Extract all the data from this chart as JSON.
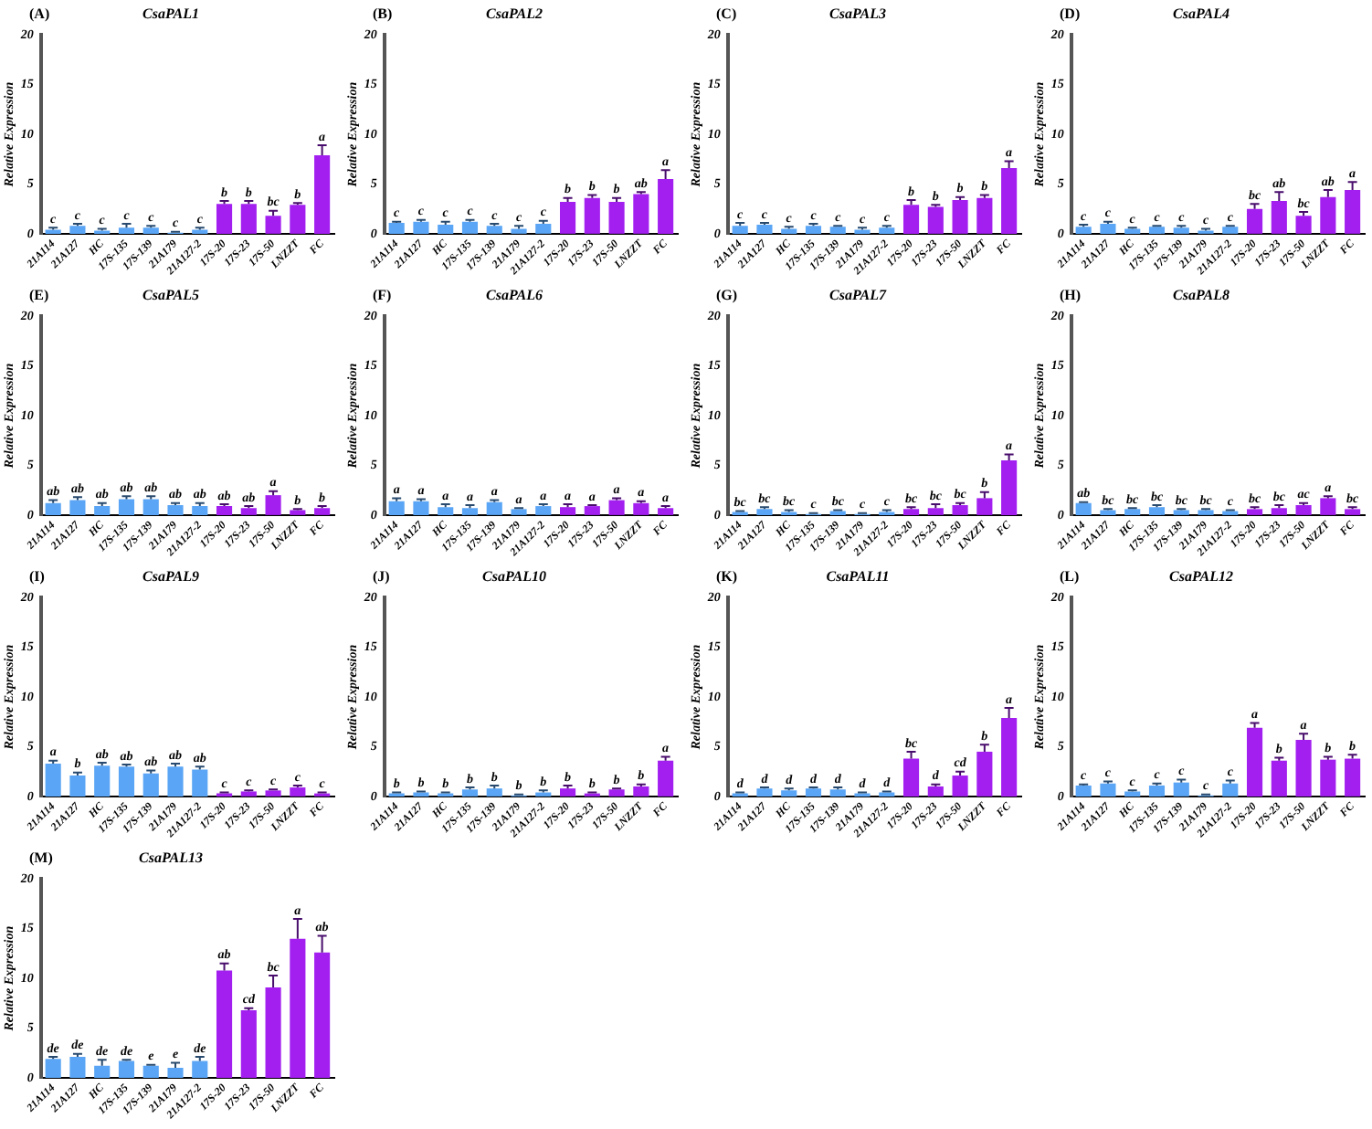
{
  "chart_data": [
    {
      "type": "bar",
      "title": "CsaPAL1",
      "annotations": [
        "(A)"
      ],
      "ylabel": "Relative Expression",
      "categories": [
        "21A114",
        "21A127",
        "HC",
        "17S-135",
        "17S-139",
        "21A179",
        "21A127-2",
        "17S-20",
        "17S-23",
        "17S-50",
        "LNZZT",
        "FC"
      ],
      "colors": [
        "#5aa5f5",
        "#5aa5f5",
        "#5aa5f5",
        "#5aa5f5",
        "#5aa5f5",
        "#5aa5f5",
        "#5aa5f5",
        "#a21ff0",
        "#a21ff0",
        "#a21ff0",
        "#a21ff0",
        "#a21ff0"
      ],
      "values": [
        0.4,
        0.8,
        0.3,
        0.6,
        0.6,
        0.1,
        0.4,
        3.0,
        3.0,
        1.8,
        2.9,
        7.9
      ],
      "errors": [
        [
          0.4,
          0.6
        ],
        [
          0.8,
          1.0
        ],
        [
          0.3,
          0.5
        ],
        [
          0.6,
          1.0
        ],
        [
          0.6,
          0.8
        ],
        [
          0.1,
          0.2
        ],
        [
          0.4,
          0.6
        ],
        [
          3.0,
          3.3
        ],
        [
          3.0,
          3.3
        ],
        [
          1.8,
          2.3
        ],
        [
          2.9,
          3.1
        ],
        [
          7.9,
          8.9
        ]
      ],
      "value_labels": [
        "c",
        "c",
        "c",
        "c",
        "c",
        "c",
        "c",
        "b",
        "b",
        "bc",
        "b",
        "a"
      ],
      "ylim": [
        0,
        20
      ],
      "yticks": [
        0,
        5,
        10,
        15,
        20
      ]
    },
    {
      "type": "bar",
      "title": "CsaPAL2",
      "annotations": [
        "(B)"
      ],
      "ylabel": "Relative Expression",
      "categories": [
        "21A114",
        "21A127",
        "HC",
        "17S-135",
        "17S-139",
        "21A179",
        "21A127-2",
        "17S-20",
        "17S-23",
        "17S-50",
        "LNZZT",
        "FC"
      ],
      "colors": [
        "#5aa5f5",
        "#5aa5f5",
        "#5aa5f5",
        "#5aa5f5",
        "#5aa5f5",
        "#5aa5f5",
        "#5aa5f5",
        "#a21ff0",
        "#a21ff0",
        "#a21ff0",
        "#a21ff0",
        "#a21ff0"
      ],
      "values": [
        1.1,
        1.2,
        0.9,
        1.2,
        0.8,
        0.5,
        1.0,
        3.2,
        3.6,
        3.2,
        4.0,
        5.5
      ],
      "errors": [
        [
          1.1,
          1.2
        ],
        [
          1.2,
          1.4
        ],
        [
          0.9,
          1.2
        ],
        [
          1.2,
          1.4
        ],
        [
          0.8,
          1.0
        ],
        [
          0.5,
          0.8
        ],
        [
          1.0,
          1.3
        ],
        [
          3.2,
          3.6
        ],
        [
          3.6,
          3.9
        ],
        [
          3.2,
          3.6
        ],
        [
          4.0,
          4.2
        ],
        [
          5.5,
          6.4
        ]
      ],
      "value_labels": [
        "c",
        "c",
        "c",
        "c",
        "c",
        "c",
        "c",
        "b",
        "b",
        "b",
        "ab",
        "a"
      ],
      "ylim": [
        0,
        20
      ],
      "yticks": [
        0,
        5,
        10,
        15,
        20
      ]
    },
    {
      "type": "bar",
      "title": "CsaPAL3",
      "annotations": [
        "(C)"
      ],
      "ylabel": "Relative Expression",
      "categories": [
        "21A114",
        "21A127",
        "HC",
        "17S-135",
        "17S-139",
        "21A179",
        "21A127-2",
        "17S-20",
        "17S-23",
        "17S-50",
        "LNZZT",
        "FC"
      ],
      "colors": [
        "#5aa5f5",
        "#5aa5f5",
        "#5aa5f5",
        "#5aa5f5",
        "#5aa5f5",
        "#5aa5f5",
        "#5aa5f5",
        "#a21ff0",
        "#a21ff0",
        "#a21ff0",
        "#a21ff0",
        "#a21ff0"
      ],
      "values": [
        0.8,
        0.9,
        0.5,
        0.8,
        0.7,
        0.4,
        0.6,
        2.9,
        2.7,
        3.4,
        3.6,
        6.6
      ],
      "errors": [
        [
          0.8,
          1.1
        ],
        [
          0.9,
          1.1
        ],
        [
          0.5,
          0.7
        ],
        [
          0.8,
          1.0
        ],
        [
          0.7,
          0.8
        ],
        [
          0.4,
          0.6
        ],
        [
          0.6,
          0.8
        ],
        [
          2.9,
          3.4
        ],
        [
          2.7,
          2.9
        ],
        [
          3.4,
          3.7
        ],
        [
          3.6,
          3.9
        ],
        [
          6.6,
          7.3
        ]
      ],
      "value_labels": [
        "c",
        "c",
        "c",
        "c",
        "c",
        "c",
        "c",
        "b",
        "b",
        "b",
        "b",
        "a"
      ],
      "ylim": [
        0,
        20
      ],
      "yticks": [
        0,
        5,
        10,
        15,
        20
      ]
    },
    {
      "type": "bar",
      "title": "CsaPAL4",
      "annotations": [
        "(D)"
      ],
      "ylabel": "Relative Expression",
      "categories": [
        "21A114",
        "21A127",
        "HC",
        "17S-135",
        "17S-139",
        "21A179",
        "21A127-2",
        "17S-20",
        "17S-23",
        "17S-50",
        "LNZZT",
        "FC"
      ],
      "colors": [
        "#5aa5f5",
        "#5aa5f5",
        "#5aa5f5",
        "#5aa5f5",
        "#5aa5f5",
        "#5aa5f5",
        "#5aa5f5",
        "#a21ff0",
        "#a21ff0",
        "#a21ff0",
        "#a21ff0",
        "#a21ff0"
      ],
      "values": [
        0.7,
        1.0,
        0.5,
        0.7,
        0.6,
        0.3,
        0.7,
        2.5,
        3.3,
        1.8,
        3.7,
        4.4
      ],
      "errors": [
        [
          0.7,
          0.9
        ],
        [
          1.0,
          1.2
        ],
        [
          0.5,
          0.6
        ],
        [
          0.7,
          0.8
        ],
        [
          0.6,
          0.8
        ],
        [
          0.3,
          0.5
        ],
        [
          0.7,
          0.8
        ],
        [
          2.5,
          3.0
        ],
        [
          3.3,
          4.2
        ],
        [
          1.8,
          2.2
        ],
        [
          3.7,
          4.4
        ],
        [
          4.4,
          5.2
        ]
      ],
      "value_labels": [
        "c",
        "c",
        "c",
        "c",
        "c",
        "c",
        "c",
        "bc",
        "ab",
        "bc",
        "ab",
        "a"
      ],
      "ylim": [
        0,
        20
      ],
      "yticks": [
        0,
        5,
        10,
        15,
        20
      ]
    },
    {
      "type": "bar",
      "title": "CsaPAL5",
      "annotations": [
        "(E)"
      ],
      "ylabel": "Relative Expression",
      "categories": [
        "21A114",
        "21A127",
        "HC",
        "17S-135",
        "17S-139",
        "21A179",
        "21A127-2",
        "17S-20",
        "17S-23",
        "17S-50",
        "LNZZT",
        "FC"
      ],
      "colors": [
        "#5aa5f5",
        "#5aa5f5",
        "#5aa5f5",
        "#5aa5f5",
        "#5aa5f5",
        "#5aa5f5",
        "#5aa5f5",
        "#a21ff0",
        "#a21ff0",
        "#a21ff0",
        "#a21ff0",
        "#a21ff0"
      ],
      "values": [
        1.2,
        1.5,
        0.9,
        1.6,
        1.6,
        1.0,
        0.9,
        0.9,
        0.7,
        2.0,
        0.5,
        0.7
      ],
      "errors": [
        [
          1.2,
          1.5
        ],
        [
          1.5,
          1.8
        ],
        [
          0.9,
          1.2
        ],
        [
          1.6,
          1.9
        ],
        [
          1.6,
          1.9
        ],
        [
          1.0,
          1.2
        ],
        [
          0.9,
          1.2
        ],
        [
          0.9,
          1.1
        ],
        [
          0.7,
          0.9
        ],
        [
          2.0,
          2.4
        ],
        [
          0.5,
          0.6
        ],
        [
          0.7,
          0.9
        ]
      ],
      "value_labels": [
        "ab",
        "ab",
        "ab",
        "ab",
        "ab",
        "ab",
        "ab",
        "ab",
        "ab",
        "a",
        "b",
        "b"
      ],
      "ylim": [
        0,
        20
      ],
      "yticks": [
        0,
        5,
        10,
        15,
        20
      ]
    },
    {
      "type": "bar",
      "title": "CsaPAL6",
      "annotations": [
        "(F)"
      ],
      "ylabel": "Relative Expression",
      "categories": [
        "21A114",
        "21A127",
        "HC",
        "17S-135",
        "17S-139",
        "21A179",
        "21A127-2",
        "17S-20",
        "17S-23",
        "17S-50",
        "LNZZT",
        "FC"
      ],
      "colors": [
        "#5aa5f5",
        "#5aa5f5",
        "#5aa5f5",
        "#5aa5f5",
        "#5aa5f5",
        "#5aa5f5",
        "#5aa5f5",
        "#a21ff0",
        "#a21ff0",
        "#a21ff0",
        "#a21ff0",
        "#a21ff0"
      ],
      "values": [
        1.4,
        1.4,
        0.8,
        0.7,
        1.3,
        0.6,
        0.9,
        0.8,
        0.9,
        1.5,
        1.2,
        0.7
      ],
      "errors": [
        [
          1.4,
          1.7
        ],
        [
          1.4,
          1.6
        ],
        [
          0.8,
          1.1
        ],
        [
          0.7,
          1.0
        ],
        [
          1.3,
          1.5
        ],
        [
          0.6,
          0.7
        ],
        [
          0.9,
          1.1
        ],
        [
          0.8,
          1.1
        ],
        [
          0.9,
          1.0
        ],
        [
          1.5,
          1.7
        ],
        [
          1.2,
          1.4
        ],
        [
          0.7,
          0.9
        ]
      ],
      "value_labels": [
        "a",
        "a",
        "a",
        "a",
        "a",
        "a",
        "a",
        "a",
        "a",
        "a",
        "a",
        "a"
      ],
      "ylim": [
        0,
        20
      ],
      "yticks": [
        0,
        5,
        10,
        15,
        20
      ]
    },
    {
      "type": "bar",
      "title": "CsaPAL7",
      "annotations": [
        "(G)"
      ],
      "ylabel": "Relative Expression",
      "categories": [
        "21A114",
        "21A127",
        "HC",
        "17S-135",
        "17S-139",
        "21A179",
        "21A127-2",
        "17S-20",
        "17S-23",
        "17S-50",
        "LNZZT",
        "FC"
      ],
      "colors": [
        "#5aa5f5",
        "#5aa5f5",
        "#5aa5f5",
        "#5aa5f5",
        "#5aa5f5",
        "#5aa5f5",
        "#5aa5f5",
        "#a21ff0",
        "#a21ff0",
        "#a21ff0",
        "#a21ff0",
        "#a21ff0"
      ],
      "values": [
        0.3,
        0.6,
        0.3,
        0.1,
        0.4,
        0.1,
        0.3,
        0.6,
        0.7,
        1.0,
        1.7,
        5.5
      ],
      "errors": [
        [
          0.3,
          0.4
        ],
        [
          0.6,
          0.8
        ],
        [
          0.3,
          0.5
        ],
        [
          0.1,
          0.2
        ],
        [
          0.4,
          0.5
        ],
        [
          0.1,
          0.2
        ],
        [
          0.3,
          0.5
        ],
        [
          0.6,
          0.8
        ],
        [
          0.7,
          1.1
        ],
        [
          1.0,
          1.2
        ],
        [
          1.7,
          2.3
        ],
        [
          5.5,
          6.1
        ]
      ],
      "value_labels": [
        "bc",
        "bc",
        "bc",
        "c",
        "bc",
        "c",
        "c",
        "bc",
        "bc",
        "bc",
        "b",
        "a"
      ],
      "ylim": [
        0,
        20
      ],
      "yticks": [
        0,
        5,
        10,
        15,
        20
      ]
    },
    {
      "type": "bar",
      "title": "CsaPAL8",
      "annotations": [
        "(H)"
      ],
      "ylabel": "Relative Expression",
      "categories": [
        "21A114",
        "21A127",
        "HC",
        "17S-135",
        "17S-139",
        "21A179",
        "21A127-2",
        "17S-20",
        "17S-23",
        "17S-50",
        "LNZZT",
        "FC"
      ],
      "colors": [
        "#5aa5f5",
        "#5aa5f5",
        "#5aa5f5",
        "#5aa5f5",
        "#5aa5f5",
        "#5aa5f5",
        "#5aa5f5",
        "#a21ff0",
        "#a21ff0",
        "#a21ff0",
        "#a21ff0",
        "#a21ff0"
      ],
      "values": [
        1.2,
        0.5,
        0.6,
        0.8,
        0.5,
        0.5,
        0.4,
        0.6,
        0.7,
        1.0,
        1.7,
        0.6
      ],
      "errors": [
        [
          1.2,
          1.3
        ],
        [
          0.5,
          0.6
        ],
        [
          0.6,
          0.7
        ],
        [
          0.8,
          1.0
        ],
        [
          0.5,
          0.6
        ],
        [
          0.5,
          0.6
        ],
        [
          0.4,
          0.5
        ],
        [
          0.6,
          0.8
        ],
        [
          0.7,
          1.0
        ],
        [
          1.0,
          1.2
        ],
        [
          1.7,
          1.9
        ],
        [
          0.6,
          0.8
        ]
      ],
      "value_labels": [
        "ab",
        "bc",
        "bc",
        "bc",
        "bc",
        "bc",
        "c",
        "bc",
        "bc",
        "ac",
        "a",
        "bc"
      ],
      "ylim": [
        0,
        20
      ],
      "yticks": [
        0,
        5,
        10,
        15,
        20
      ]
    },
    {
      "type": "bar",
      "title": "CsaPAL9",
      "annotations": [
        "(I)"
      ],
      "ylabel": "Relative Expression",
      "categories": [
        "21A114",
        "21A127",
        "HC",
        "17S-135",
        "17S-139",
        "21A179",
        "21A127-2",
        "17S-20",
        "17S-23",
        "17S-50",
        "LNZZT",
        "FC"
      ],
      "colors": [
        "#5aa5f5",
        "#5aa5f5",
        "#5aa5f5",
        "#5aa5f5",
        "#5aa5f5",
        "#5aa5f5",
        "#5aa5f5",
        "#a21ff0",
        "#a21ff0",
        "#a21ff0",
        "#a21ff0",
        "#a21ff0"
      ],
      "values": [
        3.3,
        2.1,
        3.1,
        3.0,
        2.3,
        3.0,
        2.7,
        0.3,
        0.5,
        0.6,
        0.9,
        0.3
      ],
      "errors": [
        [
          3.3,
          3.6
        ],
        [
          2.1,
          2.4
        ],
        [
          3.1,
          3.4
        ],
        [
          3.0,
          3.2
        ],
        [
          2.3,
          2.6
        ],
        [
          3.0,
          3.3
        ],
        [
          2.7,
          3.0
        ],
        [
          0.3,
          0.4
        ],
        [
          0.5,
          0.6
        ],
        [
          0.6,
          0.7
        ],
        [
          0.9,
          1.1
        ],
        [
          0.3,
          0.4
        ]
      ],
      "value_labels": [
        "a",
        "b",
        "ab",
        "ab",
        "ab",
        "ab",
        "ab",
        "c",
        "c",
        "c",
        "c",
        "c"
      ],
      "ylim": [
        0,
        20
      ],
      "yticks": [
        0,
        5,
        10,
        15,
        20
      ]
    },
    {
      "type": "bar",
      "title": "CsaPAL10",
      "annotations": [
        "(J)"
      ],
      "ylabel": "Relative Expression",
      "categories": [
        "21A114",
        "21A127",
        "HC",
        "17S-135",
        "17S-139",
        "21A179",
        "21A127-2",
        "17S-20",
        "17S-23",
        "17S-50",
        "LNZZT",
        "FC"
      ],
      "colors": [
        "#5aa5f5",
        "#5aa5f5",
        "#5aa5f5",
        "#5aa5f5",
        "#5aa5f5",
        "#5aa5f5",
        "#5aa5f5",
        "#a21ff0",
        "#a21ff0",
        "#a21ff0",
        "#a21ff0",
        "#a21ff0"
      ],
      "values": [
        0.3,
        0.4,
        0.3,
        0.7,
        0.8,
        0.1,
        0.4,
        0.8,
        0.3,
        0.7,
        1.0,
        3.6
      ],
      "errors": [
        [
          0.3,
          0.4
        ],
        [
          0.4,
          0.5
        ],
        [
          0.3,
          0.4
        ],
        [
          0.7,
          0.9
        ],
        [
          0.8,
          1.1
        ],
        [
          0.1,
          0.2
        ],
        [
          0.4,
          0.6
        ],
        [
          0.8,
          1.1
        ],
        [
          0.3,
          0.4
        ],
        [
          0.7,
          0.8
        ],
        [
          1.0,
          1.2
        ],
        [
          3.6,
          4.0
        ]
      ],
      "value_labels": [
        "b",
        "b",
        "b",
        "b",
        "b",
        "b",
        "b",
        "b",
        "b",
        "b",
        "b",
        "a"
      ],
      "ylim": [
        0,
        20
      ],
      "yticks": [
        0,
        5,
        10,
        15,
        20
      ]
    },
    {
      "type": "bar",
      "title": "CsaPAL11",
      "annotations": [
        "(K)"
      ],
      "ylabel": "Relative Expression",
      "categories": [
        "21A114",
        "21A127",
        "HC",
        "17S-135",
        "17S-139",
        "21A179",
        "21A127-2",
        "17S-20",
        "17S-23",
        "17S-50",
        "LNZZT",
        "FC"
      ],
      "colors": [
        "#5aa5f5",
        "#5aa5f5",
        "#5aa5f5",
        "#5aa5f5",
        "#5aa5f5",
        "#5aa5f5",
        "#5aa5f5",
        "#a21ff0",
        "#a21ff0",
        "#a21ff0",
        "#a21ff0",
        "#a21ff0"
      ],
      "values": [
        0.3,
        0.8,
        0.6,
        0.8,
        0.7,
        0.3,
        0.4,
        3.8,
        1.0,
        2.1,
        4.5,
        7.9
      ],
      "errors": [
        [
          0.3,
          0.4
        ],
        [
          0.8,
          0.9
        ],
        [
          0.6,
          0.8
        ],
        [
          0.8,
          0.9
        ],
        [
          0.7,
          0.9
        ],
        [
          0.3,
          0.4
        ],
        [
          0.4,
          0.5
        ],
        [
          3.8,
          4.5
        ],
        [
          1.0,
          1.2
        ],
        [
          2.1,
          2.5
        ],
        [
          4.5,
          5.2
        ],
        [
          7.9,
          8.9
        ]
      ],
      "value_labels": [
        "d",
        "d",
        "d",
        "d",
        "d",
        "d",
        "d",
        "bc",
        "d",
        "cd",
        "b",
        "a"
      ],
      "ylim": [
        0,
        20
      ],
      "yticks": [
        0,
        5,
        10,
        15,
        20
      ]
    },
    {
      "type": "bar",
      "title": "CsaPAL12",
      "annotations": [
        "(L)"
      ],
      "ylabel": "Relative Expression",
      "categories": [
        "21A114",
        "21A127",
        "HC",
        "17S-135",
        "17S-139",
        "21A179",
        "21A127-2",
        "17S-20",
        "17S-23",
        "17S-50",
        "LNZZT",
        "FC"
      ],
      "colors": [
        "#5aa5f5",
        "#5aa5f5",
        "#5aa5f5",
        "#5aa5f5",
        "#5aa5f5",
        "#5aa5f5",
        "#5aa5f5",
        "#a21ff0",
        "#a21ff0",
        "#a21ff0",
        "#a21ff0",
        "#a21ff0"
      ],
      "values": [
        1.1,
        1.3,
        0.5,
        1.1,
        1.4,
        0.1,
        1.3,
        6.9,
        3.6,
        5.7,
        3.7,
        3.8
      ],
      "errors": [
        [
          1.1,
          1.2
        ],
        [
          1.3,
          1.5
        ],
        [
          0.5,
          0.6
        ],
        [
          1.1,
          1.3
        ],
        [
          1.4,
          1.7
        ],
        [
          0.1,
          0.2
        ],
        [
          1.3,
          1.6
        ],
        [
          6.9,
          7.4
        ],
        [
          3.6,
          3.9
        ],
        [
          5.7,
          6.3
        ],
        [
          3.7,
          4.0
        ],
        [
          3.8,
          4.2
        ]
      ],
      "value_labels": [
        "c",
        "c",
        "c",
        "c",
        "c",
        "c",
        "c",
        "a",
        "b",
        "a",
        "b",
        "b"
      ],
      "ylim": [
        0,
        20
      ],
      "yticks": [
        0,
        5,
        10,
        15,
        20
      ]
    },
    {
      "type": "bar",
      "title": "CsaPAL13",
      "annotations": [
        "(M)"
      ],
      "ylabel": "Relative Expression",
      "categories": [
        "21A114",
        "21A127",
        "HC",
        "17S-135",
        "17S-139",
        "21A179",
        "21A127-2",
        "17S-20",
        "17S-23",
        "17S-50",
        "LNZZT",
        "FC"
      ],
      "colors": [
        "#5aa5f5",
        "#5aa5f5",
        "#5aa5f5",
        "#5aa5f5",
        "#5aa5f5",
        "#5aa5f5",
        "#5aa5f5",
        "#a21ff0",
        "#a21ff0",
        "#a21ff0",
        "#a21ff0",
        "#a21ff0"
      ],
      "values": [
        1.9,
        2.1,
        1.2,
        1.7,
        1.2,
        1.0,
        1.7,
        10.8,
        6.8,
        9.1,
        14.0,
        12.6
      ],
      "errors": [
        [
          1.9,
          2.1
        ],
        [
          2.1,
          2.4
        ],
        [
          1.2,
          1.8
        ],
        [
          1.7,
          1.8
        ],
        [
          1.2,
          1.3
        ],
        [
          1.0,
          1.5
        ],
        [
          1.7,
          2.1
        ],
        [
          10.8,
          11.5
        ],
        [
          6.8,
          7.0
        ],
        [
          9.1,
          10.3
        ],
        [
          14.0,
          16.0
        ],
        [
          12.6,
          14.3
        ]
      ],
      "value_labels": [
        "de",
        "de",
        "de",
        "de",
        "e",
        "e",
        "de",
        "ab",
        "cd",
        "bc",
        "a",
        "ab"
      ],
      "ylim": [
        0,
        20
      ],
      "yticks": [
        0,
        5,
        10,
        15,
        20
      ]
    }
  ]
}
